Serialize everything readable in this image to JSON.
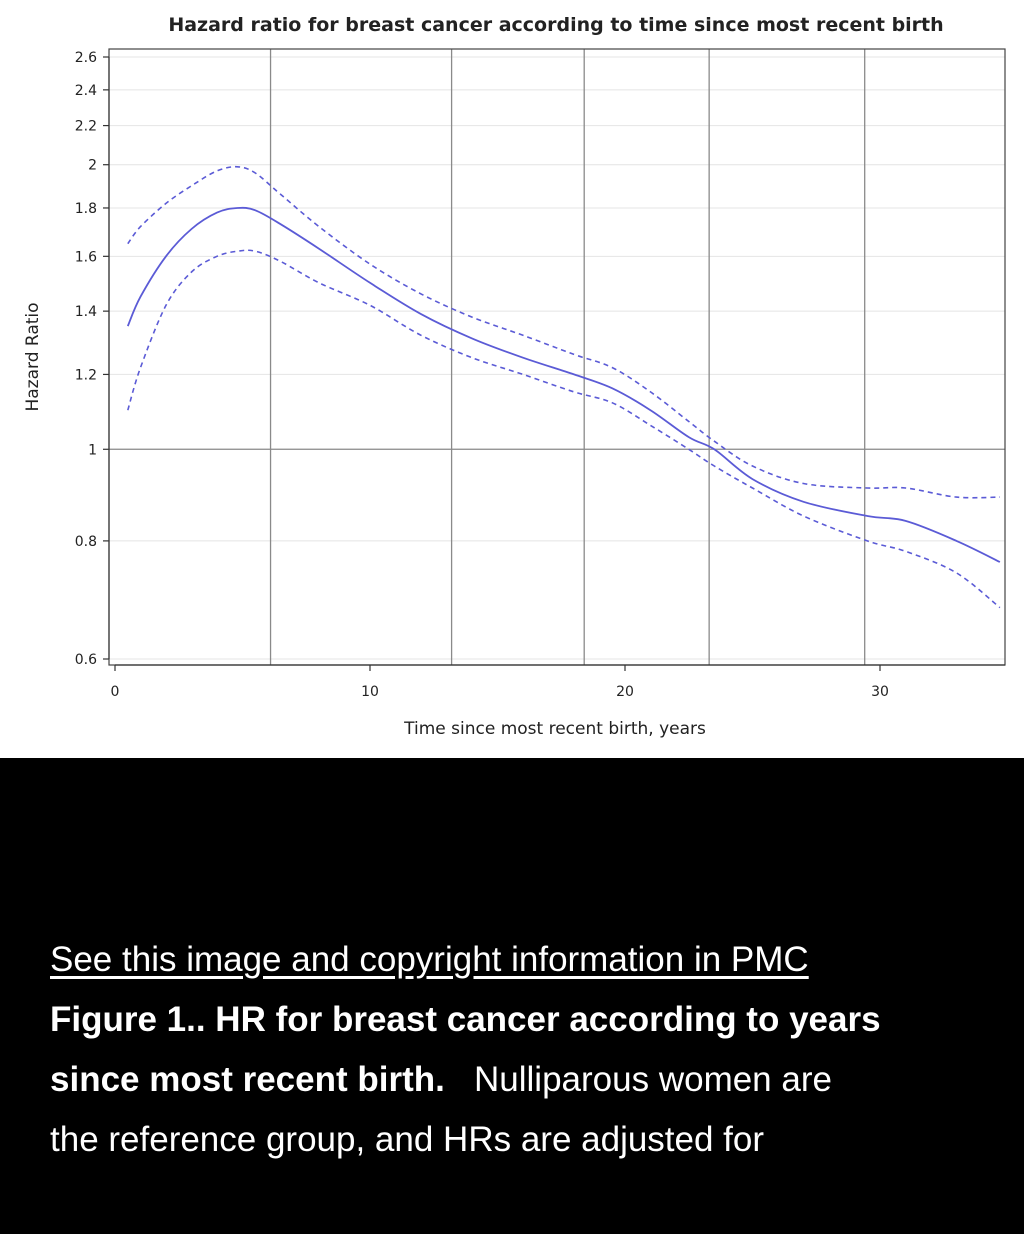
{
  "caption": {
    "link_text": "See this image and copyright information in PMC",
    "bold_line1": "Figure 1.. HR for breast cancer according to years",
    "bold_line2": "since most recent birth.",
    "normal_line2": "Nulliparous women are",
    "normal_line3": "the reference group, and HRs are adjusted for"
  },
  "chart_data": {
    "type": "line",
    "title": "Hazard ratio for breast cancer according to time since most recent birth",
    "xlabel": "Time since most recent birth, years",
    "ylabel": "Hazard Ratio",
    "y_scale": "log",
    "xlim": [
      0,
      35
    ],
    "ylim": [
      0.6,
      2.6
    ],
    "x_ticks": [
      0,
      10,
      20,
      30
    ],
    "y_ticks": [
      0.6,
      0.8,
      1,
      1.2,
      1.4,
      1.6,
      1.8,
      2,
      2.2,
      2.4,
      2.6
    ],
    "y_tick_labels": [
      "0.6",
      "0.8",
      "1",
      "1.2",
      "1.4",
      "1.6",
      "1.8",
      "2",
      "2.2",
      "2.4",
      "2.6"
    ],
    "reference_line": 1,
    "vertical_reference_lines": [
      6.1,
      13.2,
      18.4,
      23.3,
      29.4
    ],
    "series": [
      {
        "style": "solid",
        "color": "#5b5bd6",
        "x": [
          0.5,
          1,
          2,
          3,
          4,
          4.8,
          5.5,
          6.5,
          8,
          10,
          12,
          14,
          16,
          18,
          19.5,
          21,
          22.5,
          23.5,
          25,
          27,
          29.5,
          31,
          33,
          34.7
        ],
        "y": [
          1.35,
          1.45,
          1.6,
          1.71,
          1.78,
          1.8,
          1.79,
          1.73,
          1.63,
          1.5,
          1.39,
          1.31,
          1.25,
          1.2,
          1.16,
          1.1,
          1.03,
          1.0,
          0.93,
          0.88,
          0.85,
          0.84,
          0.8,
          0.76
        ]
      },
      {
        "style": "dashed",
        "color": "#5b5bd6",
        "x": [
          0.5,
          1,
          2,
          3,
          4,
          4.8,
          5.5,
          6.5,
          8,
          10,
          12,
          14,
          16,
          18,
          19.5,
          21,
          22.5,
          23.5,
          25,
          27,
          29.5,
          31,
          33,
          34.7
        ],
        "y": [
          1.65,
          1.72,
          1.82,
          1.9,
          1.97,
          1.99,
          1.96,
          1.86,
          1.72,
          1.57,
          1.46,
          1.38,
          1.32,
          1.26,
          1.22,
          1.15,
          1.07,
          1.02,
          0.96,
          0.92,
          0.91,
          0.91,
          0.89,
          0.89
        ]
      },
      {
        "style": "dashed",
        "color": "#5b5bd6",
        "x": [
          0.5,
          1,
          2,
          3,
          4,
          4.8,
          5.5,
          6.5,
          8,
          10,
          12,
          14,
          16,
          18,
          19.5,
          21,
          22.5,
          23.5,
          25,
          27,
          29.5,
          31,
          33,
          34.7
        ],
        "y": [
          1.1,
          1.22,
          1.42,
          1.54,
          1.6,
          1.62,
          1.62,
          1.58,
          1.5,
          1.42,
          1.32,
          1.25,
          1.2,
          1.15,
          1.12,
          1.06,
          1.0,
          0.96,
          0.91,
          0.85,
          0.8,
          0.78,
          0.74,
          0.68
        ]
      }
    ],
    "grid": true
  }
}
